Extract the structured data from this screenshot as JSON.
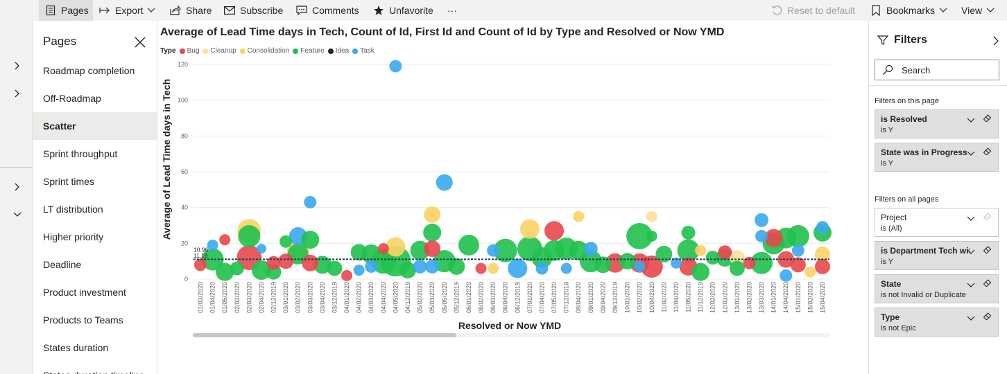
{
  "toolbar": {
    "pages": "Pages",
    "export": "Export",
    "share": "Share",
    "subscribe": "Subscribe",
    "comments": "Comments",
    "unfavorite": "Unfavorite",
    "more": "···",
    "reset": "Reset to default",
    "bookmarks": "Bookmarks",
    "view": "View"
  },
  "pages_panel": {
    "title": "Pages",
    "items": [
      "Roadmap completion",
      "Off-Roadmap",
      "Scatter",
      "Sprint throughput",
      "Sprint times",
      "LT distribution",
      "Higher priority",
      "Deadline",
      "Product investment",
      "Products to Teams",
      "States duration",
      "States duration timeline"
    ],
    "selected": "Scatter"
  },
  "filters": {
    "title": "Filters",
    "search_placeholder": "Search",
    "on_this_page_label": "Filters on this page",
    "on_all_pages_label": "Filters on all pages",
    "this_page": [
      {
        "name": "is Resolved",
        "value": "is Y"
      },
      {
        "name": "State was in Progress",
        "value": "is Y"
      }
    ],
    "all_pages": [
      {
        "name": "Project",
        "value": "is (All)"
      },
      {
        "name": "is Department Tech with",
        "value": "is Y"
      },
      {
        "name": "State",
        "value": "is not Invalid or Duplicate"
      },
      {
        "name": "Type",
        "value": "is not Epic"
      }
    ]
  },
  "colors": {
    "Bug": "#e8474c",
    "Cleanup": "#fde19c",
    "Consolidation": "#fdd265",
    "Feature": "#1fc14c",
    "Idea": "#252423",
    "Task": "#3aa8f0"
  },
  "chart_data": {
    "type": "scatter",
    "title": "Average of Lead Time days in Tech, Count of Id, First Id and Count of Id by Type and Resolved or Now YMD",
    "legend_title": "Type",
    "legend": [
      "Bug",
      "Cleanup",
      "Consolidation",
      "Feature",
      "Idea",
      "Task"
    ],
    "legend_position": "top-left",
    "xlabel": "Resolved or Now YMD",
    "ylabel": "Average of Lead Time days in Tech",
    "ylim": [
      0,
      120
    ],
    "yticks": [
      0,
      20,
      40,
      60,
      80,
      100,
      120
    ],
    "grid": true,
    "reference_lines": [
      {
        "label": "10.96",
        "value": 10.96
      },
      {
        "label": "11.19",
        "value": 11.19
      }
    ],
    "categories": [
      "01/03/2020",
      "01/04/2020",
      "01/05/2020",
      "02/02/2020",
      "02/03/2020",
      "02/04/2020",
      "02/12/2019",
      "03/01/2020",
      "03/02/2020",
      "03/03/2020",
      "03/04/2020",
      "03/12/2019",
      "04/01/2020",
      "04/02/2020",
      "04/03/2020",
      "04/04/2020",
      "04/05/2020",
      "04/12/2019",
      "05/02/2020",
      "05/03/2020",
      "05/05/2020",
      "05/12/2019",
      "06/01/2020",
      "06/02/2020",
      "06/03/2020",
      "06/04/2020",
      "06/12/2019",
      "07/01/2020",
      "07/04/2020",
      "07/05/2020",
      "07/12/2019",
      "08/04/2020",
      "09/01/2020",
      "09/04/2020",
      "09/12/2019",
      "10/01/2020",
      "10/02/2020",
      "10/04/2020",
      "11/02/2020",
      "11/04/2020",
      "11/05/2020",
      "11/12/2019",
      "12/02/2020",
      "12/03/2020",
      "13/01/2020",
      "13/02/2020",
      "13/03/2020",
      "14/01/2020",
      "14/04/2020",
      "15/01/2020",
      "15/02/2020",
      "15/04/2020"
    ],
    "points": [
      {
        "x": "01/03/2020",
        "y": 8,
        "size": 9,
        "type": "Bug"
      },
      {
        "x": "01/04/2020",
        "y": 19,
        "size": 8,
        "type": "Task"
      },
      {
        "x": "01/04/2020",
        "y": 11,
        "size": 16,
        "type": "Feature"
      },
      {
        "x": "01/05/2020",
        "y": 22,
        "size": 8,
        "type": "Bug"
      },
      {
        "x": "01/05/2020",
        "y": 4,
        "size": 13,
        "type": "Feature"
      },
      {
        "x": "02/02/2020",
        "y": 6,
        "size": 10,
        "type": "Feature"
      },
      {
        "x": "02/03/2020",
        "y": 27,
        "size": 17,
        "type": "Consolidation"
      },
      {
        "x": "02/03/2020",
        "y": 24,
        "size": 16,
        "type": "Feature"
      },
      {
        "x": "02/03/2020",
        "y": 12,
        "size": 18,
        "type": "Bug"
      },
      {
        "x": "02/04/2020",
        "y": 17,
        "size": 7,
        "type": "Task"
      },
      {
        "x": "02/04/2020",
        "y": 5,
        "size": 14,
        "type": "Feature"
      },
      {
        "x": "02/12/2019",
        "y": 9,
        "size": 10,
        "type": "Bug"
      },
      {
        "x": "02/12/2019",
        "y": 4,
        "size": 11,
        "type": "Feature"
      },
      {
        "x": "03/01/2020",
        "y": 21,
        "size": 9,
        "type": "Feature"
      },
      {
        "x": "03/01/2020",
        "y": 10,
        "size": 11,
        "type": "Bug"
      },
      {
        "x": "03/02/2020",
        "y": 24,
        "size": 13,
        "type": "Task"
      },
      {
        "x": "03/02/2020",
        "y": 15,
        "size": 16,
        "type": "Consolidation"
      },
      {
        "x": "03/02/2020",
        "y": 14,
        "size": 15,
        "type": "Feature"
      },
      {
        "x": "03/03/2020",
        "y": 43,
        "size": 9,
        "type": "Task"
      },
      {
        "x": "03/03/2020",
        "y": 22,
        "size": 13,
        "type": "Feature"
      },
      {
        "x": "03/03/2020",
        "y": 9,
        "size": 12,
        "type": "Bug"
      },
      {
        "x": "03/04/2020",
        "y": 8,
        "size": 13,
        "type": "Feature"
      },
      {
        "x": "03/12/2019",
        "y": 6,
        "size": 11,
        "type": "Feature"
      },
      {
        "x": "04/01/2020",
        "y": 2,
        "size": 8,
        "type": "Bug"
      },
      {
        "x": "04/02/2020",
        "y": 15,
        "size": 12,
        "type": "Feature"
      },
      {
        "x": "04/02/2020",
        "y": 5,
        "size": 8,
        "type": "Task"
      },
      {
        "x": "04/03/2020",
        "y": 14,
        "size": 14,
        "type": "Feature"
      },
      {
        "x": "04/03/2020",
        "y": 7,
        "size": 9,
        "type": "Task"
      },
      {
        "x": "04/04/2020",
        "y": 17,
        "size": 8,
        "type": "Bug"
      },
      {
        "x": "04/04/2020",
        "y": 10,
        "size": 18,
        "type": "Feature"
      },
      {
        "x": "04/05/2020",
        "y": 119,
        "size": 9,
        "type": "Task"
      },
      {
        "x": "04/05/2020",
        "y": 18,
        "size": 14,
        "type": "Consolidation"
      },
      {
        "x": "04/05/2020",
        "y": 10,
        "size": 22,
        "type": "Feature"
      },
      {
        "x": "04/12/2019",
        "y": 5,
        "size": 12,
        "type": "Feature"
      },
      {
        "x": "05/02/2020",
        "y": 16,
        "size": 14,
        "type": "Feature"
      },
      {
        "x": "05/02/2020",
        "y": 7,
        "size": 10,
        "type": "Task"
      },
      {
        "x": "05/03/2020",
        "y": 36,
        "size": 12,
        "type": "Consolidation"
      },
      {
        "x": "05/03/2020",
        "y": 26,
        "size": 13,
        "type": "Feature"
      },
      {
        "x": "05/03/2020",
        "y": 17,
        "size": 12,
        "type": "Bug"
      },
      {
        "x": "05/03/2020",
        "y": 7,
        "size": 10,
        "type": "Task"
      },
      {
        "x": "05/05/2020",
        "y": 54,
        "size": 12,
        "type": "Task"
      },
      {
        "x": "05/05/2020",
        "y": 10,
        "size": 16,
        "type": "Feature"
      },
      {
        "x": "05/12/2019",
        "y": 7,
        "size": 12,
        "type": "Feature"
      },
      {
        "x": "06/01/2020",
        "y": 19,
        "size": 15,
        "type": "Feature"
      },
      {
        "x": "06/02/2020",
        "y": 6,
        "size": 8,
        "type": "Bug"
      },
      {
        "x": "06/03/2020",
        "y": 16,
        "size": 9,
        "type": "Task"
      },
      {
        "x": "06/03/2020",
        "y": 6,
        "size": 8,
        "type": "Consolidation"
      },
      {
        "x": "06/04/2020",
        "y": 16,
        "size": 17,
        "type": "Feature"
      },
      {
        "x": "06/12/2019",
        "y": 6,
        "size": 14,
        "type": "Task"
      },
      {
        "x": "07/01/2020",
        "y": 28,
        "size": 14,
        "type": "Consolidation"
      },
      {
        "x": "07/01/2020",
        "y": 17,
        "size": 18,
        "type": "Feature"
      },
      {
        "x": "07/04/2020",
        "y": 12,
        "size": 15,
        "type": "Feature"
      },
      {
        "x": "07/04/2020",
        "y": 6,
        "size": 9,
        "type": "Task"
      },
      {
        "x": "07/05/2020",
        "y": 27,
        "size": 14,
        "type": "Bug"
      },
      {
        "x": "07/05/2020",
        "y": 16,
        "size": 15,
        "type": "Feature"
      },
      {
        "x": "07/12/2019",
        "y": 6,
        "size": 8,
        "type": "Task"
      },
      {
        "x": "07/12/2019",
        "y": 17,
        "size": 16,
        "type": "Feature"
      },
      {
        "x": "08/04/2020",
        "y": 35,
        "size": 8,
        "type": "Consolidation"
      },
      {
        "x": "08/04/2020",
        "y": 16,
        "size": 14,
        "type": "Feature"
      },
      {
        "x": "09/01/2020",
        "y": 17,
        "size": 10,
        "type": "Task"
      },
      {
        "x": "09/01/2020",
        "y": 10,
        "size": 16,
        "type": "Feature"
      },
      {
        "x": "09/04/2020",
        "y": 8,
        "size": 12,
        "type": "Feature"
      },
      {
        "x": "09/12/2019",
        "y": 9,
        "size": 14,
        "type": "Bug"
      },
      {
        "x": "10/01/2020",
        "y": 10,
        "size": 12,
        "type": "Feature"
      },
      {
        "x": "10/02/2020",
        "y": 24,
        "size": 19,
        "type": "Feature"
      },
      {
        "x": "10/02/2020",
        "y": 9,
        "size": 14,
        "type": "Bug"
      },
      {
        "x": "10/02/2020",
        "y": 7,
        "size": 8,
        "type": "Task"
      },
      {
        "x": "10/04/2020",
        "y": 35,
        "size": 8,
        "type": "Cleanup"
      },
      {
        "x": "10/04/2020",
        "y": 24,
        "size": 8,
        "type": "Feature"
      },
      {
        "x": "10/04/2020",
        "y": 7,
        "size": 16,
        "type": "Bug"
      },
      {
        "x": "11/02/2020",
        "y": 14,
        "size": 12,
        "type": "Feature"
      },
      {
        "x": "11/04/2020",
        "y": 9,
        "size": 8,
        "type": "Task"
      },
      {
        "x": "11/05/2020",
        "y": 26,
        "size": 10,
        "type": "Feature"
      },
      {
        "x": "11/05/2020",
        "y": 16,
        "size": 16,
        "type": "Feature"
      },
      {
        "x": "11/05/2020",
        "y": 7,
        "size": 13,
        "type": "Bug"
      },
      {
        "x": "11/12/2019",
        "y": 16,
        "size": 8,
        "type": "Consolidation"
      },
      {
        "x": "11/12/2019",
        "y": 4,
        "size": 13,
        "type": "Feature"
      },
      {
        "x": "12/02/2020",
        "y": 12,
        "size": 10,
        "type": "Feature"
      },
      {
        "x": "12/03/2020",
        "y": 15,
        "size": 10,
        "type": "Bug"
      },
      {
        "x": "12/03/2020",
        "y": 12,
        "size": 13,
        "type": "Feature"
      },
      {
        "x": "13/01/2020",
        "y": 12,
        "size": 11,
        "type": "Cleanup"
      },
      {
        "x": "13/01/2020",
        "y": 6,
        "size": 11,
        "type": "Feature"
      },
      {
        "x": "13/02/2020",
        "y": 9,
        "size": 9,
        "type": "Bug"
      },
      {
        "x": "13/03/2020",
        "y": 33,
        "size": 10,
        "type": "Task"
      },
      {
        "x": "13/03/2020",
        "y": 24,
        "size": 9,
        "type": "Task"
      },
      {
        "x": "13/03/2020",
        "y": 9,
        "size": 16,
        "type": "Feature"
      },
      {
        "x": "14/01/2020",
        "y": 23,
        "size": 13,
        "type": "Bug"
      },
      {
        "x": "14/01/2020",
        "y": 20,
        "size": 16,
        "type": "Feature"
      },
      {
        "x": "14/04/2020",
        "y": 23,
        "size": 15,
        "type": "Feature"
      },
      {
        "x": "14/04/2020",
        "y": 11,
        "size": 12,
        "type": "Bug"
      },
      {
        "x": "14/04/2020",
        "y": 2,
        "size": 9,
        "type": "Task"
      },
      {
        "x": "15/01/2020",
        "y": 24,
        "size": 16,
        "type": "Feature"
      },
      {
        "x": "15/01/2020",
        "y": 16,
        "size": 9,
        "type": "Task"
      },
      {
        "x": "15/01/2020",
        "y": 8,
        "size": 11,
        "type": "Bug"
      },
      {
        "x": "15/02/2020",
        "y": 4,
        "size": 8,
        "type": "Consolidation"
      },
      {
        "x": "15/04/2020",
        "y": 29,
        "size": 9,
        "type": "Task"
      },
      {
        "x": "15/04/2020",
        "y": 26,
        "size": 13,
        "type": "Feature"
      },
      {
        "x": "15/04/2020",
        "y": 14,
        "size": 11,
        "type": "Consolidation"
      },
      {
        "x": "15/04/2020",
        "y": 7,
        "size": 11,
        "type": "Bug"
      }
    ]
  }
}
